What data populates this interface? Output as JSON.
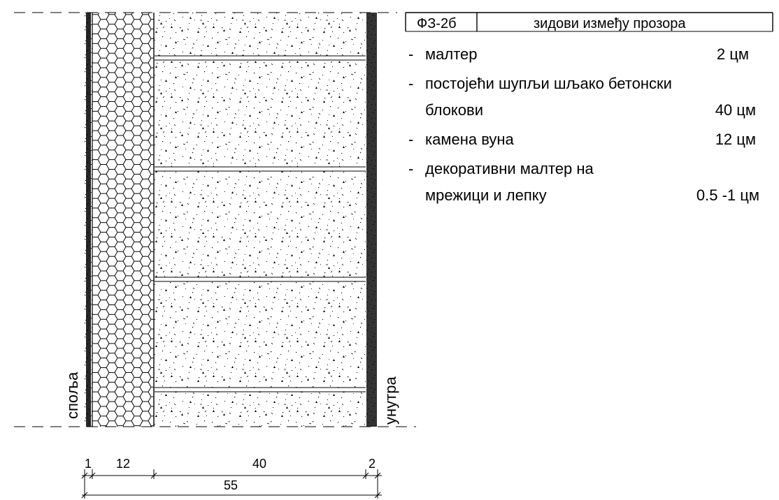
{
  "header": {
    "code": "ФЗ-2б",
    "title": "зидови између прозора"
  },
  "layers": [
    {
      "name": "малтер",
      "thickness": "2 цм"
    },
    {
      "name_line1": "постојећи шупљи шљако бетонски",
      "name_line2": "блокови",
      "thickness": "40 цм"
    },
    {
      "name": "камена вуна",
      "thickness": "12 цм"
    },
    {
      "name_line1": "декоративни малтер на",
      "name_line2": "мрежици и лепку",
      "thickness": "0.5 -1 цм"
    }
  ],
  "bullet": "-",
  "side_labels": {
    "outside": "споља",
    "inside": "унутра"
  },
  "dimensions": {
    "segments": [
      "1",
      "12",
      "40",
      "2"
    ],
    "total": "55"
  },
  "colors": {
    "line": "#000000",
    "background": "#ffffff"
  }
}
